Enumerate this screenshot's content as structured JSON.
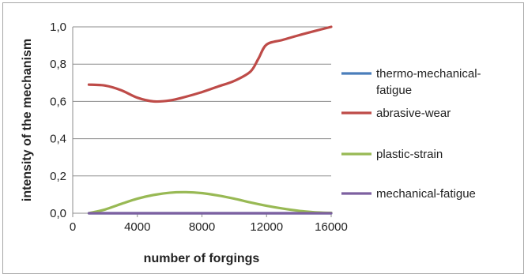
{
  "chart_data": {
    "type": "line",
    "title": "",
    "xlabel": "number of forgings",
    "ylabel": "intensity of the mechanism",
    "xlim": [
      0,
      16000
    ],
    "ylim": [
      0,
      1.0
    ],
    "x_ticks": [
      "0",
      "4000",
      "8000",
      "12000",
      "16000"
    ],
    "x_tick_values": [
      0,
      4000,
      8000,
      12000,
      16000
    ],
    "y_ticks": [
      "0,0",
      "0,2",
      "0,4",
      "0,6",
      "0,8",
      "1,0"
    ],
    "y_tick_values": [
      0,
      0.2,
      0.4,
      0.6,
      0.8,
      1.0
    ],
    "grid": "horizontal",
    "legend_position": "right",
    "series": [
      {
        "name": "thermo-mechanical-fatigue",
        "color": "#4a7ebb",
        "x": [
          1000,
          4000,
          8000,
          12000,
          16000
        ],
        "y": [
          0,
          0,
          0,
          0,
          0
        ]
      },
      {
        "name": "abrasive-wear",
        "color": "#be4b48",
        "x": [
          1000,
          2000,
          3000,
          4000,
          5000,
          6000,
          7000,
          8000,
          9000,
          10000,
          11000,
          11500,
          12000,
          13000,
          14000,
          15000,
          16000
        ],
        "y": [
          0.69,
          0.685,
          0.66,
          0.62,
          0.6,
          0.605,
          0.625,
          0.65,
          0.68,
          0.71,
          0.76,
          0.83,
          0.905,
          0.93,
          0.955,
          0.978,
          1.0
        ]
      },
      {
        "name": "plastic-strain",
        "color": "#98b954",
        "x": [
          1000,
          2000,
          3000,
          4000,
          5000,
          6000,
          7000,
          8000,
          9000,
          10000,
          11000,
          12000,
          13000,
          14000,
          15000,
          16000
        ],
        "y": [
          0.0,
          0.02,
          0.05,
          0.078,
          0.098,
          0.11,
          0.113,
          0.108,
          0.095,
          0.078,
          0.058,
          0.04,
          0.025,
          0.013,
          0.005,
          0.002
        ]
      },
      {
        "name": "mechanical-fatigue",
        "color": "#7d60a0",
        "x": [
          1000,
          4000,
          8000,
          12000,
          16000
        ],
        "y": [
          0,
          0,
          0,
          0,
          0
        ]
      }
    ],
    "legend_lines": [
      [
        "thermo-mechanical-",
        "fatigue"
      ],
      [
        "abrasive-wear"
      ],
      [
        "plastic-strain"
      ],
      [
        "mechanical-fatigue"
      ]
    ]
  }
}
